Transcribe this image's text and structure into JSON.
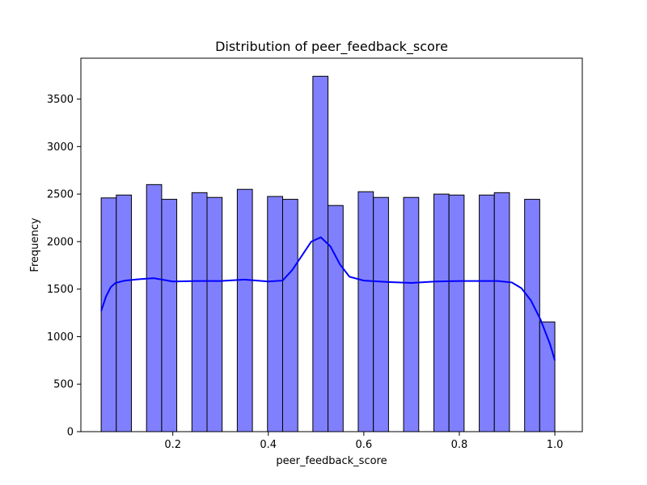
{
  "chart_data": {
    "type": "bar",
    "subtype": "histogram",
    "title": "Distribution of peer_feedback_score",
    "xlabel": "peer_feedback_score",
    "ylabel": "Frequency",
    "xlim": [
      0.0075,
      1.0575
    ],
    "ylim": [
      0,
      3930
    ],
    "xticks": [
      0.2,
      0.4,
      0.6,
      0.8,
      1.0
    ],
    "xtick_labels": [
      "0.2",
      "0.4",
      "0.6",
      "0.8",
      "1.0"
    ],
    "yticks": [
      0,
      500,
      1000,
      1500,
      2000,
      2500,
      3000,
      3500
    ],
    "ytick_labels": [
      "0",
      "500",
      "1000",
      "1500",
      "2000",
      "2500",
      "3000",
      "3500"
    ],
    "grid": false,
    "bar_color": "#8080ff",
    "bar_edge_color": "#000000",
    "kde_color": "#0000ff",
    "bins": [
      {
        "x0": 0.05,
        "x1": 0.0817,
        "count": 2460
      },
      {
        "x0": 0.0817,
        "x1": 0.1133,
        "count": 2490
      },
      {
        "x0": 0.1133,
        "x1": 0.145,
        "count": 0
      },
      {
        "x0": 0.145,
        "x1": 0.1767,
        "count": 2600
      },
      {
        "x0": 0.1767,
        "x1": 0.2083,
        "count": 2445
      },
      {
        "x0": 0.2083,
        "x1": 0.24,
        "count": 0
      },
      {
        "x0": 0.24,
        "x1": 0.2717,
        "count": 2515
      },
      {
        "x0": 0.2717,
        "x1": 0.3033,
        "count": 2465
      },
      {
        "x0": 0.3033,
        "x1": 0.335,
        "count": 0
      },
      {
        "x0": 0.335,
        "x1": 0.3667,
        "count": 2550
      },
      {
        "x0": 0.3667,
        "x1": 0.3983,
        "count": 0
      },
      {
        "x0": 0.3983,
        "x1": 0.43,
        "count": 2475
      },
      {
        "x0": 0.43,
        "x1": 0.4617,
        "count": 2445
      },
      {
        "x0": 0.4617,
        "x1": 0.4933,
        "count": 0
      },
      {
        "x0": 0.4933,
        "x1": 0.525,
        "count": 3740
      },
      {
        "x0": 0.525,
        "x1": 0.5567,
        "count": 2380
      },
      {
        "x0": 0.5567,
        "x1": 0.5883,
        "count": 0
      },
      {
        "x0": 0.5883,
        "x1": 0.62,
        "count": 2525
      },
      {
        "x0": 0.62,
        "x1": 0.6517,
        "count": 2465
      },
      {
        "x0": 0.6517,
        "x1": 0.6833,
        "count": 0
      },
      {
        "x0": 0.6833,
        "x1": 0.715,
        "count": 2465
      },
      {
        "x0": 0.715,
        "x1": 0.7467,
        "count": 0
      },
      {
        "x0": 0.7467,
        "x1": 0.7783,
        "count": 2500
      },
      {
        "x0": 0.7783,
        "x1": 0.81,
        "count": 2490
      },
      {
        "x0": 0.81,
        "x1": 0.8417,
        "count": 0
      },
      {
        "x0": 0.8417,
        "x1": 0.8733,
        "count": 2490
      },
      {
        "x0": 0.8733,
        "x1": 0.905,
        "count": 2515
      },
      {
        "x0": 0.905,
        "x1": 0.9367,
        "count": 0
      },
      {
        "x0": 0.9367,
        "x1": 0.9683,
        "count": 2445
      },
      {
        "x0": 0.9683,
        "x1": 1.0,
        "count": 1155
      }
    ],
    "kde": {
      "x": [
        0.05,
        0.06,
        0.07,
        0.08,
        0.1,
        0.13,
        0.16,
        0.2,
        0.25,
        0.3,
        0.35,
        0.4,
        0.43,
        0.45,
        0.47,
        0.49,
        0.51,
        0.53,
        0.55,
        0.57,
        0.6,
        0.65,
        0.7,
        0.75,
        0.8,
        0.85,
        0.88,
        0.91,
        0.93,
        0.95,
        0.97,
        0.99,
        1.0
      ],
      "y": [
        1270,
        1420,
        1520,
        1565,
        1590,
        1605,
        1615,
        1580,
        1585,
        1585,
        1600,
        1580,
        1590,
        1700,
        1850,
        2000,
        2045,
        1950,
        1760,
        1630,
        1590,
        1575,
        1565,
        1580,
        1585,
        1585,
        1585,
        1570,
        1510,
        1380,
        1180,
        920,
        750
      ]
    }
  }
}
